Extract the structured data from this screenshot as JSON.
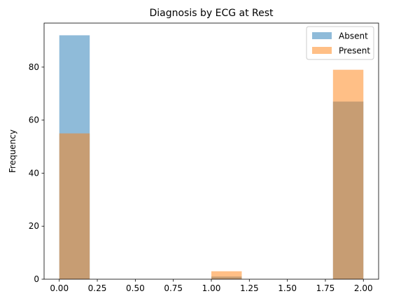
{
  "chart_data": {
    "type": "bar",
    "title": "Diagnosis by ECG at Rest",
    "xlabel": "",
    "ylabel": "Frequency",
    "xlim": [
      -0.1,
      2.1
    ],
    "ylim": [
      0,
      96.6
    ],
    "x_ticks": [
      "0.00",
      "0.25",
      "0.50",
      "0.75",
      "1.00",
      "1.25",
      "1.50",
      "1.75",
      "2.00"
    ],
    "y_ticks": [
      "0",
      "20",
      "40",
      "60",
      "80"
    ],
    "bins": [
      [
        0.0,
        0.2
      ],
      [
        1.0,
        1.2
      ],
      [
        1.8,
        2.0
      ]
    ],
    "series": [
      {
        "name": "Absent",
        "color": "#1f77b4",
        "values": [
          92,
          1,
          67
        ]
      },
      {
        "name": "Present",
        "color": "#ff7f0e",
        "values": [
          55,
          3,
          79
        ]
      }
    ],
    "legend_placement": "top-right",
    "grid": false
  }
}
